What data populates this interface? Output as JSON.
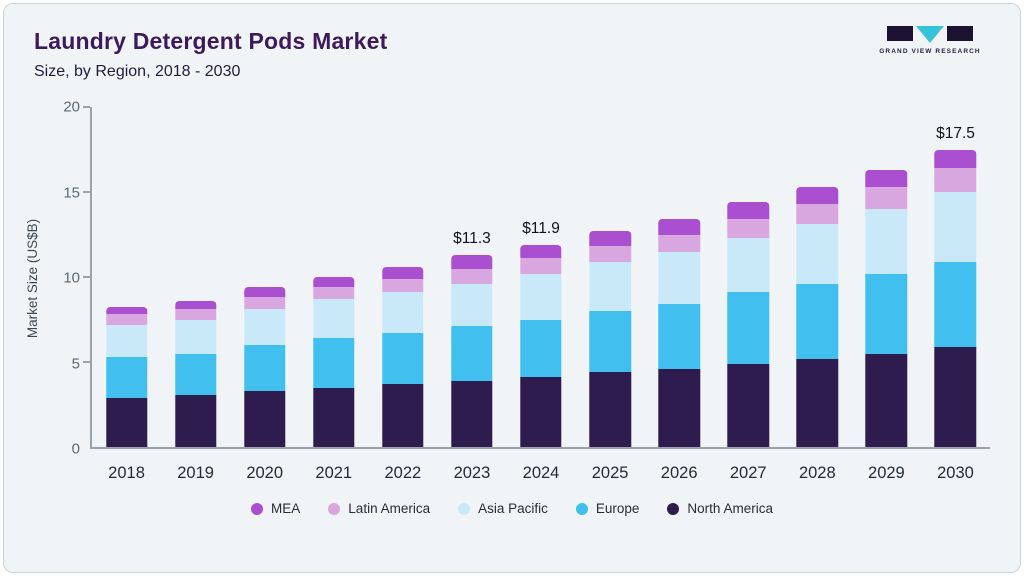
{
  "header": {
    "title": "Laundry Detergent Pods Market",
    "subtitle": "Size, by Region, 2018 - 2030"
  },
  "logo": {
    "text": "GRAND VIEW RESEARCH",
    "accent_color": "#35c4d7",
    "dark_color": "#1d1233"
  },
  "chart_data": {
    "type": "bar",
    "stacked": true,
    "title": "Laundry Detergent Pods Market Size, by Region, 2018 - 2030",
    "ylabel": "Market Size (US$B)",
    "ylim": [
      0,
      20
    ],
    "yticks": [
      0,
      5,
      10,
      15,
      20
    ],
    "grid": false,
    "legend_position": "bottom",
    "categories": [
      "2018",
      "2019",
      "2020",
      "2021",
      "2022",
      "2023",
      "2024",
      "2025",
      "2026",
      "2027",
      "2028",
      "2029",
      "2030"
    ],
    "series": [
      {
        "name": "North America",
        "color": "#2f1c4e",
        "values": [
          2.9,
          3.05,
          3.3,
          3.5,
          3.7,
          3.9,
          4.1,
          4.4,
          4.6,
          4.9,
          5.2,
          5.5,
          5.9
        ]
      },
      {
        "name": "Europe",
        "color": "#41c0f0",
        "values": [
          2.4,
          2.45,
          2.7,
          2.9,
          3.0,
          3.2,
          3.4,
          3.6,
          3.8,
          4.2,
          4.4,
          4.7,
          5.0
        ]
      },
      {
        "name": "Asia Pacific",
        "color": "#c9e9f9",
        "values": [
          1.9,
          2.0,
          2.1,
          2.3,
          2.4,
          2.5,
          2.7,
          2.9,
          3.1,
          3.2,
          3.5,
          3.8,
          4.1
        ]
      },
      {
        "name": "Latin America",
        "color": "#d9a7e0",
        "values": [
          0.6,
          0.6,
          0.7,
          0.7,
          0.8,
          0.9,
          0.9,
          0.9,
          1.0,
          1.1,
          1.2,
          1.3,
          1.4
        ]
      },
      {
        "name": "MEA",
        "color": "#a94fd0",
        "values": [
          0.45,
          0.5,
          0.6,
          0.6,
          0.7,
          0.8,
          0.8,
          0.9,
          0.9,
          1.0,
          1.0,
          1.0,
          1.1
        ]
      }
    ],
    "annotations": [
      {
        "category": "2023",
        "label": "$11.3"
      },
      {
        "category": "2024",
        "label": "$11.9"
      },
      {
        "category": "2030",
        "label": "$17.5"
      }
    ],
    "legend_order": [
      "MEA",
      "Latin America",
      "Asia Pacific",
      "Europe",
      "North America"
    ]
  }
}
